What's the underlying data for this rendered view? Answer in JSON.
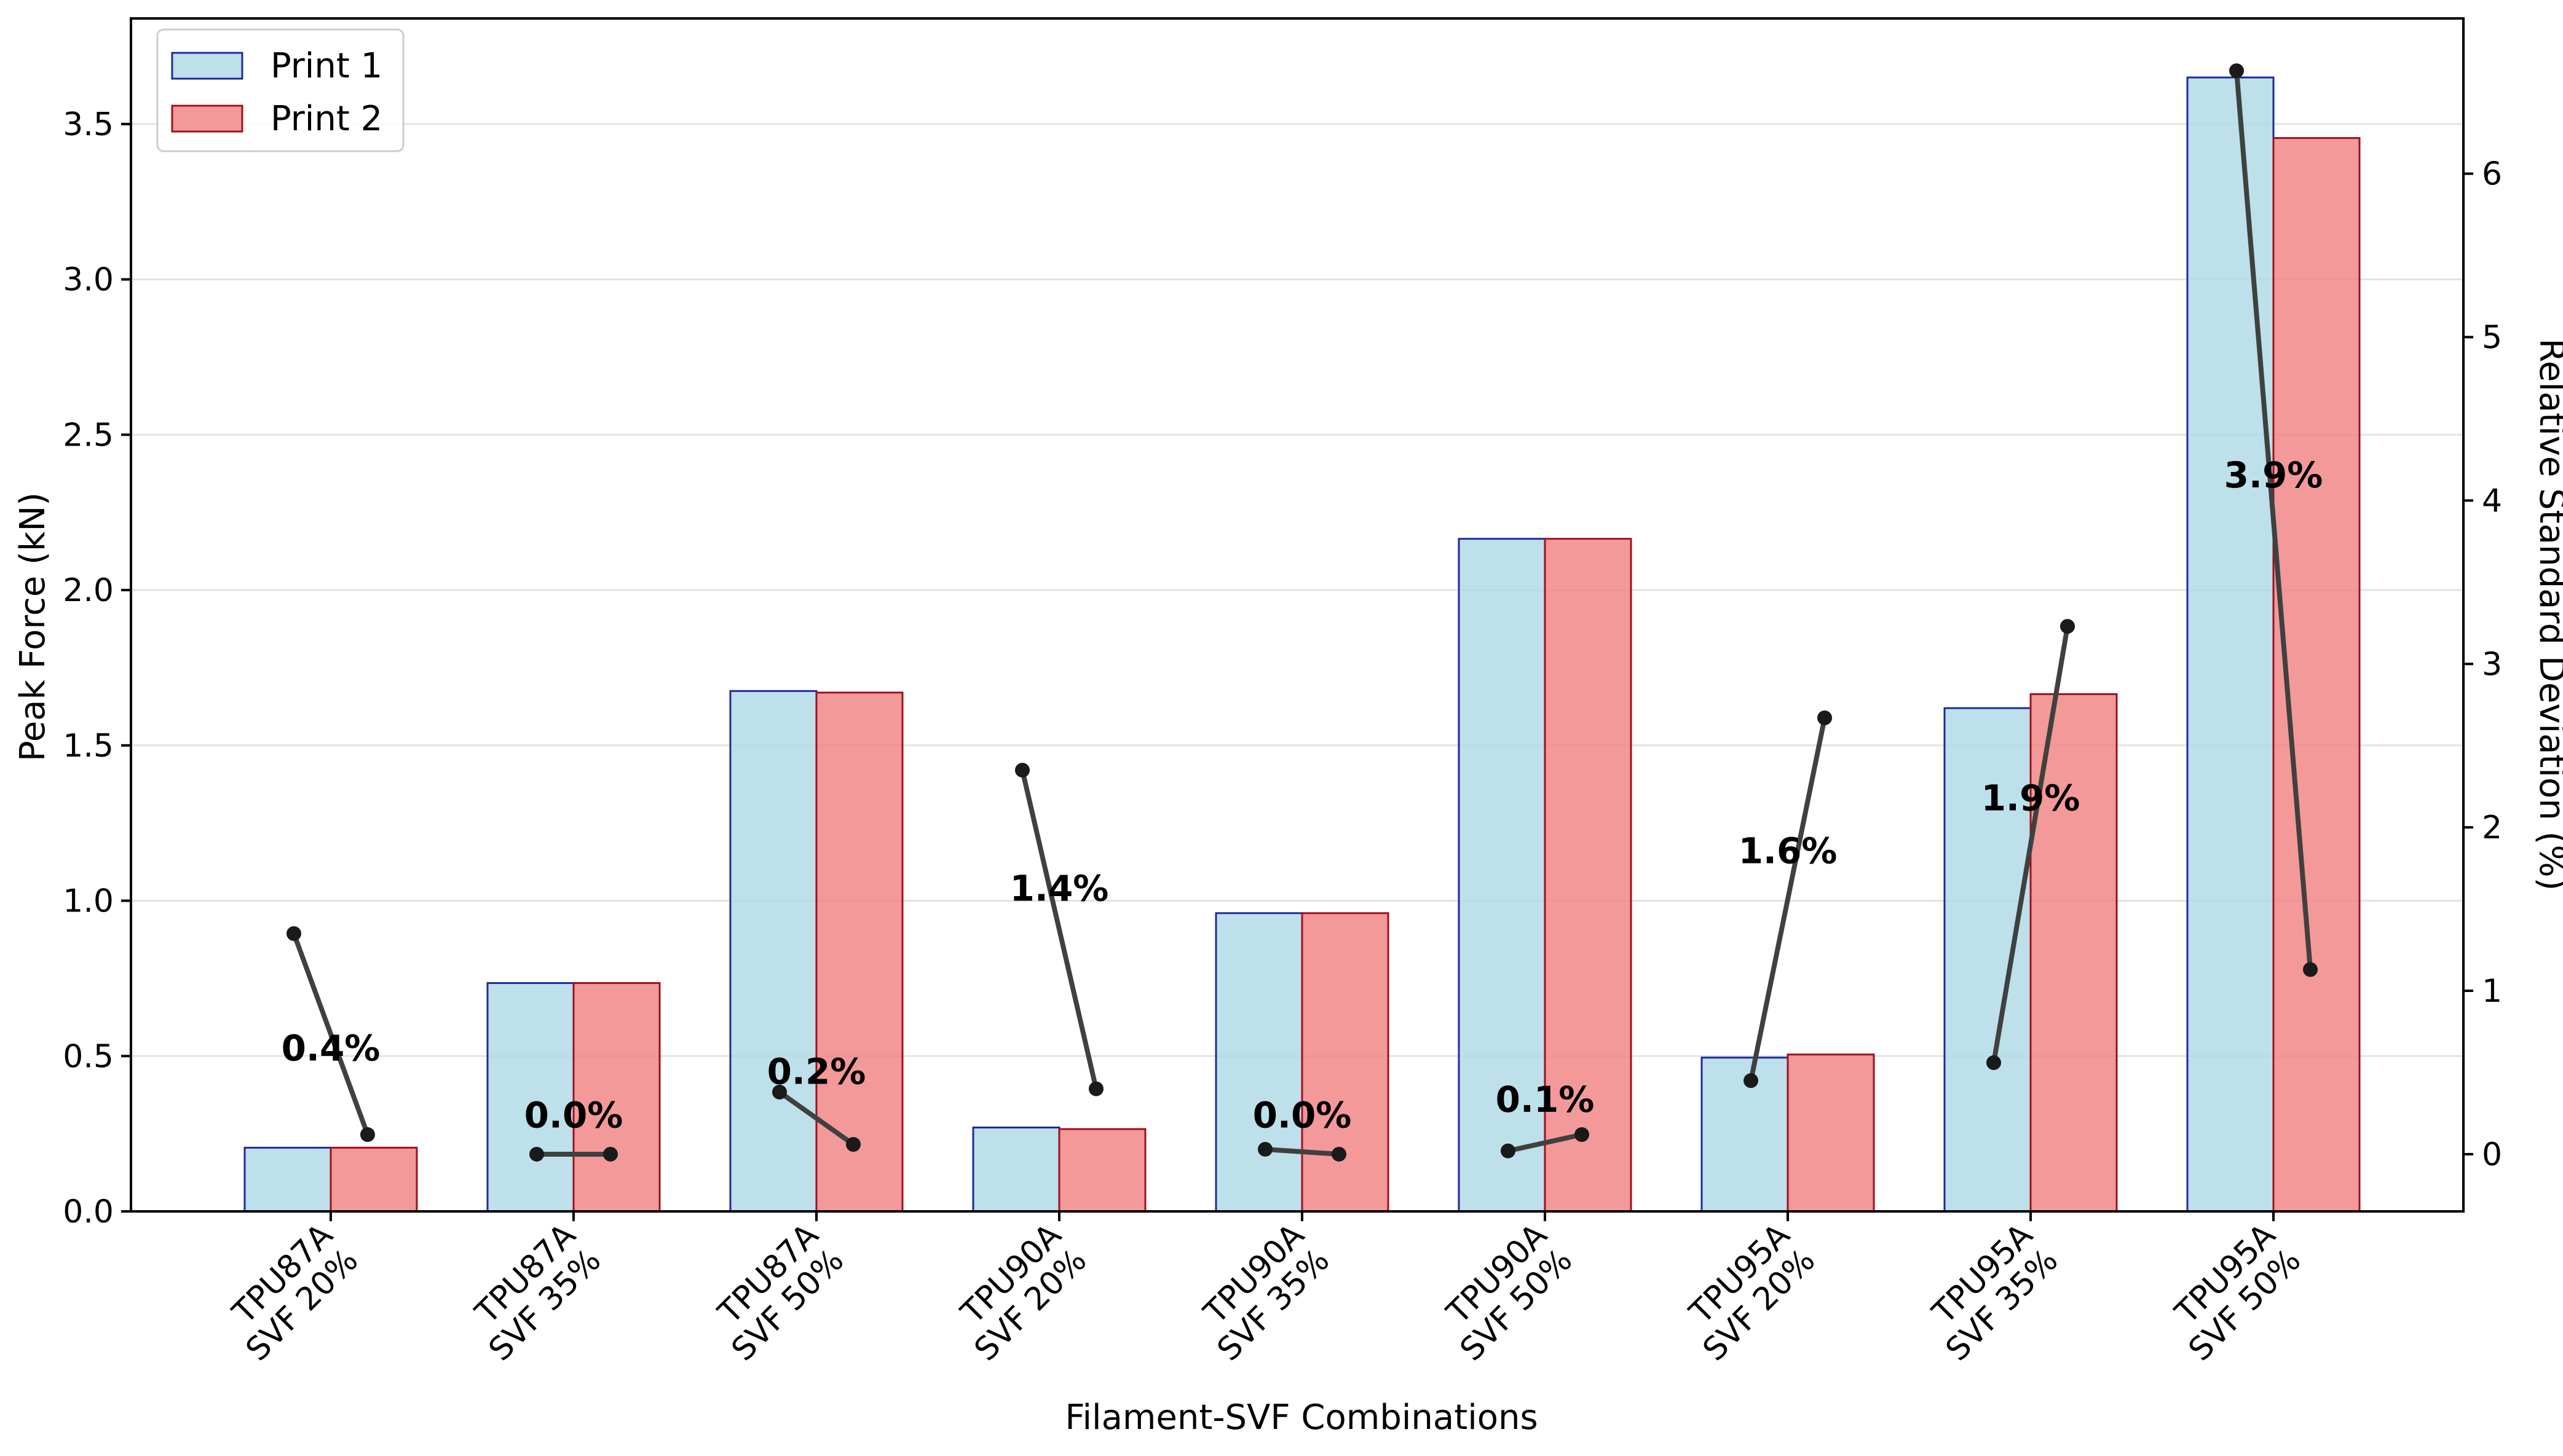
{
  "chart_data": {
    "type": "bar",
    "xlabel": "Filament-SVF Combinations",
    "ylabel": "Peak Force (kN)",
    "y2label": "Relative Standard Deviation (%)",
    "ylim": [
      0,
      3.84
    ],
    "y2lim": [
      -0.35,
      6.95
    ],
    "yticks": [
      "0.0",
      "0.5",
      "1.0",
      "1.5",
      "2.0",
      "2.5",
      "3.0",
      "3.5"
    ],
    "y2ticks": [
      "0",
      "1",
      "2",
      "3",
      "4",
      "5",
      "6"
    ],
    "grid": "horizontal",
    "legend_position": "top-left",
    "categories": [
      [
        "TPU87A",
        "SVF 20%"
      ],
      [
        "TPU87A",
        "SVF 35%"
      ],
      [
        "TPU87A",
        "SVF 50%"
      ],
      [
        "TPU90A",
        "SVF 20%"
      ],
      [
        "TPU90A",
        "SVF 35%"
      ],
      [
        "TPU90A",
        "SVF 50%"
      ],
      [
        "TPU95A",
        "SVF 20%"
      ],
      [
        "TPU95A",
        "SVF 35%"
      ],
      [
        "TPU95A",
        "SVF 50%"
      ]
    ],
    "series": [
      {
        "name": "Print 1",
        "fill": "#add8e6",
        "stroke": "#1f2a9c",
        "values": [
          0.205,
          0.735,
          1.675,
          0.27,
          0.96,
          2.165,
          0.495,
          1.62,
          3.65
        ]
      },
      {
        "name": "Print 2",
        "fill": "#f08080",
        "stroke": "#a01020",
        "values": [
          0.205,
          0.735,
          1.67,
          0.265,
          0.96,
          2.165,
          0.505,
          1.665,
          3.455
        ]
      }
    ],
    "rsd_pairs": [
      [
        1.35,
        0.12
      ],
      [
        0.0,
        0.0
      ],
      [
        0.38,
        0.06
      ],
      [
        2.35,
        0.4
      ],
      [
        0.03,
        0.0
      ],
      [
        0.02,
        0.12
      ],
      [
        0.45,
        2.67
      ],
      [
        0.56,
        3.23
      ],
      [
        6.63,
        1.13
      ]
    ],
    "rsd_labels": [
      "0.4%",
      "0.0%",
      "0.2%",
      "1.4%",
      "0.0%",
      "0.1%",
      "1.6%",
      "1.9%",
      "3.9%"
    ],
    "rsd_label_values": [
      0.525,
      0.31,
      0.45,
      1.04,
      0.31,
      0.36,
      1.16,
      1.33,
      2.37
    ],
    "rsd_line_color": "#404040",
    "rsd_marker_color": "#1a1a1a"
  }
}
